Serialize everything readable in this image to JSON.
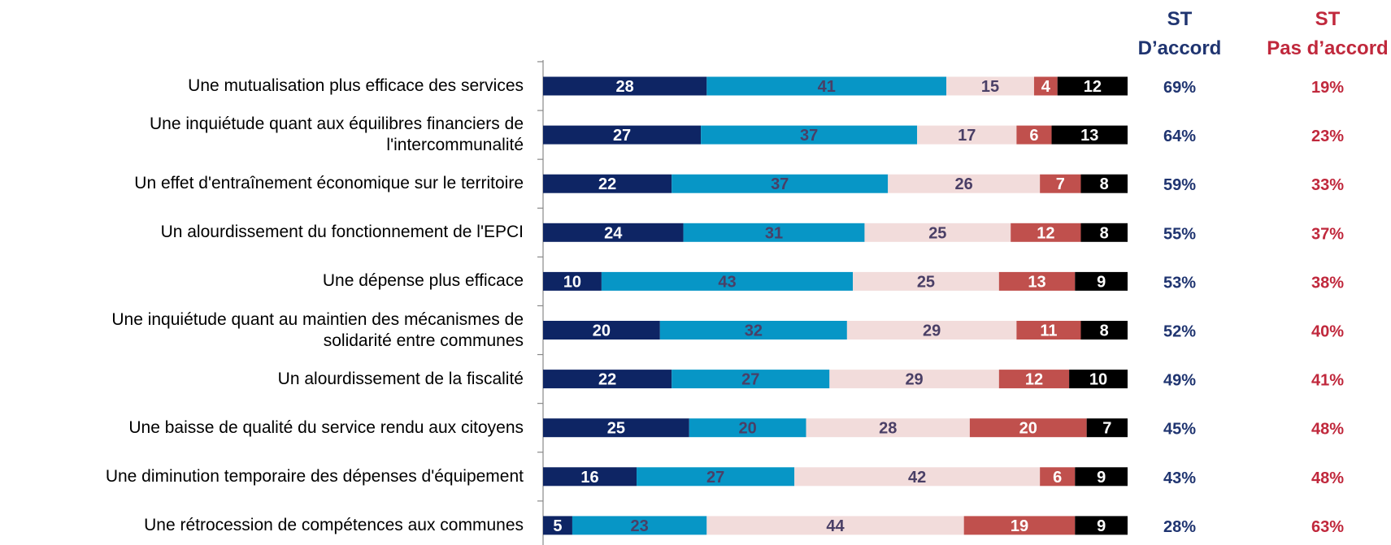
{
  "chart_data": {
    "type": "stacked_bar",
    "categories": [
      "Une mutualisation plus efficace des services",
      "Une inquiétude quant aux équilibres financiers de\nl'intercommunalité",
      "Un effet d'entraînement économique sur le territoire",
      "Un alourdissement du fonctionnement de l'EPCI",
      "Une dépense plus efficace",
      "Une inquiétude quant au maintien des mécanismes de\nsolidarité entre communes",
      "Un alourdissement de la fiscalité",
      "Une baisse de qualité du service rendu aux citoyens",
      "Une diminution temporaire des dépenses d'équipement",
      "Une rétrocession de compétences aux communes"
    ],
    "series": [
      {
        "color": "#0e2564",
        "label_color": "#ffffff",
        "values": [
          28,
          27,
          22,
          24,
          10,
          20,
          22,
          25,
          16,
          5
        ]
      },
      {
        "color": "#0796c6",
        "label_color": "#4a3f66",
        "values": [
          41,
          37,
          37,
          31,
          43,
          32,
          27,
          20,
          27,
          23
        ]
      },
      {
        "color": "#f2dcdb",
        "label_color": "#4a3f66",
        "values": [
          15,
          17,
          26,
          25,
          25,
          29,
          29,
          28,
          42,
          44
        ]
      },
      {
        "color": "#c0504d",
        "label_color": "#ffffff",
        "values": [
          4,
          6,
          7,
          12,
          13,
          11,
          12,
          20,
          6,
          19
        ]
      },
      {
        "color": "#000000",
        "label_color": "#ffffff",
        "values": [
          12,
          13,
          8,
          8,
          9,
          8,
          10,
          7,
          9,
          9
        ]
      }
    ],
    "summary_columns": [
      {
        "title": "ST\nD’accord",
        "color": "#1f3470",
        "values": [
          69,
          64,
          59,
          55,
          53,
          52,
          49,
          45,
          43,
          28
        ],
        "value_labels": [
          "69%",
          "64%",
          "59%",
          "55%",
          "53%",
          "52%",
          "49%",
          "45%",
          "43%",
          "28%"
        ]
      },
      {
        "title": "ST\nPas d’accord",
        "color": "#c0283c",
        "values": [
          19,
          23,
          33,
          37,
          38,
          40,
          41,
          48,
          48,
          63
        ],
        "value_labels": [
          "19%",
          "23%",
          "33%",
          "37%",
          "38%",
          "40%",
          "41%",
          "48%",
          "48%",
          "63%"
        ]
      }
    ]
  }
}
